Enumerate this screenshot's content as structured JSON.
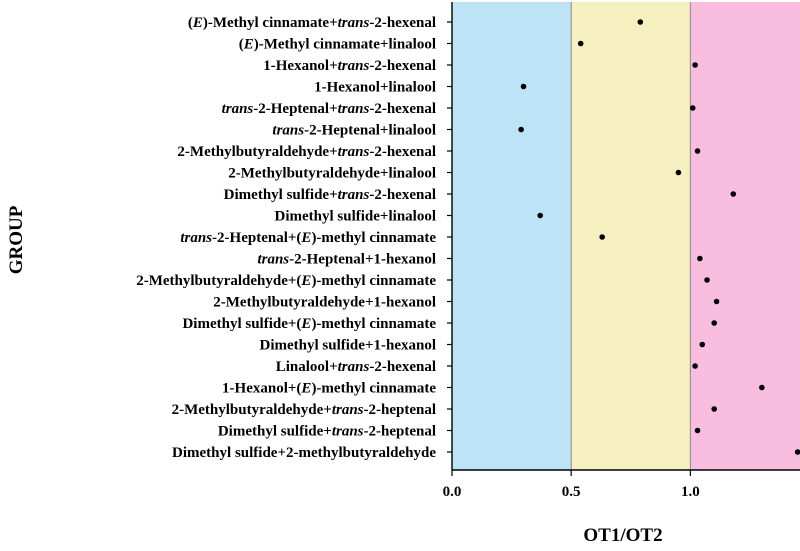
{
  "chart_data": {
    "type": "scatter",
    "xlabel": "OT1/OT2",
    "ylabel": "GROUP",
    "xlim": [
      0,
      1.46
    ],
    "xticks": [
      "0.0",
      "0.5",
      "1.0"
    ],
    "regions": [
      {
        "name": "below-0.5",
        "from": 0.0,
        "to": 0.5,
        "color": "#bde3f7"
      },
      {
        "name": "0.5-to-1.0",
        "from": 0.5,
        "to": 1.0,
        "color": "#f6f0c0"
      },
      {
        "name": "above-1.0",
        "from": 1.0,
        "to": 1.46,
        "color": "#f9bde0"
      }
    ],
    "marker_color": "#000000",
    "categories": [
      [
        {
          "t": "("
        },
        {
          "t": "E",
          "i": true
        },
        {
          "t": ")-Methyl cinnamate+"
        },
        {
          "t": "trans",
          "i": true
        },
        {
          "t": "-2-hexenal"
        }
      ],
      [
        {
          "t": "("
        },
        {
          "t": "E",
          "i": true
        },
        {
          "t": ")-Methyl cinnamate+linalool"
        }
      ],
      [
        {
          "t": "1-Hexanol+"
        },
        {
          "t": "trans",
          "i": true
        },
        {
          "t": "-2-hexenal"
        }
      ],
      [
        {
          "t": "1-Hexanol+linalool"
        }
      ],
      [
        {
          "t": "trans",
          "i": true
        },
        {
          "t": "-2-Heptenal+"
        },
        {
          "t": "trans",
          "i": true
        },
        {
          "t": "-2-hexenal"
        }
      ],
      [
        {
          "t": "trans",
          "i": true
        },
        {
          "t": "-2-Heptenal+linalool"
        }
      ],
      [
        {
          "t": "2-Methylbutyraldehyde+"
        },
        {
          "t": "trans",
          "i": true
        },
        {
          "t": "-2-hexenal"
        }
      ],
      [
        {
          "t": "2-Methylbutyraldehyde+linalool"
        }
      ],
      [
        {
          "t": "Dimethyl sulfide+"
        },
        {
          "t": "trans",
          "i": true
        },
        {
          "t": "-2-hexenal"
        }
      ],
      [
        {
          "t": "Dimethyl sulfide+linalool"
        }
      ],
      [
        {
          "t": "trans",
          "i": true
        },
        {
          "t": "-2-Heptenal+("
        },
        {
          "t": "E",
          "i": true
        },
        {
          "t": ")-methyl cinnamate"
        }
      ],
      [
        {
          "t": "trans",
          "i": true
        },
        {
          "t": "-2-Heptenal+1-hexanol"
        }
      ],
      [
        {
          "t": "2-Methylbutyraldehyde+("
        },
        {
          "t": "E",
          "i": true
        },
        {
          "t": ")-methyl cinnamate"
        }
      ],
      [
        {
          "t": "2-Methylbutyraldehyde+1-hexanol"
        }
      ],
      [
        {
          "t": "Dimethyl sulfide+("
        },
        {
          "t": "E",
          "i": true
        },
        {
          "t": ")-methyl cinnamate"
        }
      ],
      [
        {
          "t": "Dimethyl sulfide+1-hexanol"
        }
      ],
      [
        {
          "t": "Linalool+"
        },
        {
          "t": "trans",
          "i": true
        },
        {
          "t": "-2-hexenal"
        }
      ],
      [
        {
          "t": "1-Hexanol+("
        },
        {
          "t": "E",
          "i": true
        },
        {
          "t": ")-methyl cinnamate"
        }
      ],
      [
        {
          "t": "2-Methylbutyraldehyde+"
        },
        {
          "t": "trans",
          "i": true
        },
        {
          "t": "-2-heptenal"
        }
      ],
      [
        {
          "t": "Dimethyl sulfide+"
        },
        {
          "t": "trans",
          "i": true
        },
        {
          "t": "-2-heptenal"
        }
      ],
      [
        {
          "t": "Dimethyl sulfide+2-methylbutyraldehyde"
        }
      ]
    ],
    "values": [
      0.79,
      0.54,
      1.02,
      0.3,
      1.01,
      0.29,
      1.03,
      0.95,
      1.18,
      0.37,
      0.63,
      1.04,
      1.07,
      1.11,
      1.1,
      1.05,
      1.02,
      1.3,
      1.1,
      1.03,
      1.45
    ]
  }
}
